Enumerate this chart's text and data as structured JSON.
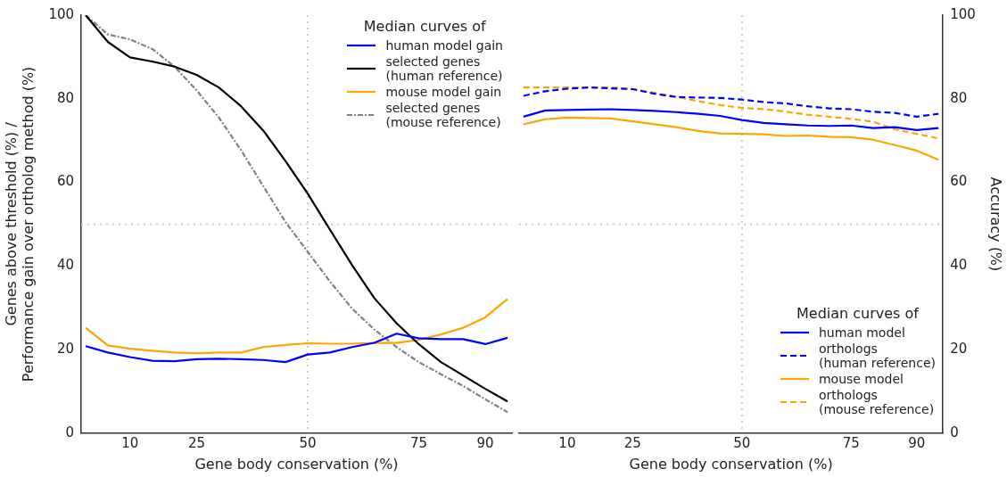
{
  "chart_data": [
    {
      "type": "line",
      "xlabel": "Gene body conservation (%)",
      "ylabel": "Genes above threshold (%) /\nPerformance gain over ortholog method (%)",
      "legend_title": "Median curves of",
      "legend": "top right",
      "x": [
        0,
        5,
        10,
        15,
        20,
        25,
        30,
        35,
        40,
        45,
        50,
        55,
        60,
        65,
        70,
        75,
        80,
        85,
        90,
        95
      ],
      "xlim": [
        -1,
        96
      ],
      "xticks": [
        10,
        25,
        50,
        75,
        90
      ],
      "ylim": [
        0,
        100
      ],
      "yticks": [
        0,
        20,
        40,
        60,
        80,
        100
      ],
      "ref_lines": [
        {
          "axis": "x",
          "value": 50,
          "color": "#cccccc",
          "line_style": "dotted"
        },
        {
          "axis": "y",
          "value": 50,
          "color": "#cccccc",
          "line_style": "dotted"
        }
      ],
      "series": [
        {
          "name": "human model gain",
          "color": "#0000ff",
          "line_style": "solid",
          "values": [
            20.8,
            19.3,
            18.2,
            17.3,
            17.2,
            17.7,
            17.8,
            17.7,
            17.5,
            17.0,
            18.8,
            19.3,
            20.6,
            21.6,
            23.8,
            22.7,
            22.5,
            22.5,
            21.3,
            22.8
          ]
        },
        {
          "name": "selected genes\n(human reference)",
          "color": "#000000",
          "line_style": "solid",
          "values": [
            100,
            93.6,
            89.9,
            88.9,
            87.7,
            85.7,
            82.7,
            78.2,
            72.4,
            65.1,
            57.3,
            48.7,
            40.2,
            32.3,
            26.3,
            21.3,
            17.0,
            13.8,
            10.6,
            7.6
          ]
        },
        {
          "name": "mouse model gain",
          "color": "#ffa500",
          "line_style": "solid",
          "values": [
            25.2,
            21.0,
            20.2,
            19.7,
            19.3,
            19.1,
            19.3,
            19.3,
            20.6,
            21.1,
            21.5,
            21.4,
            21.4,
            21.6,
            21.6,
            22.3,
            23.6,
            25.2,
            27.7,
            32.1
          ]
        },
        {
          "name": "selected genes\n(mouse reference)",
          "color": "#808080",
          "line_style": "dashdot",
          "values": [
            100,
            95.4,
            94.2,
            91.9,
            87.7,
            82.0,
            75.5,
            67.7,
            59.1,
            50.5,
            43.4,
            36.3,
            29.8,
            24.8,
            20.6,
            17.0,
            14.1,
            11.3,
            8.1,
            5.0
          ]
        }
      ]
    },
    {
      "type": "line",
      "xlabel": "Gene body conservation (%)",
      "y2label": "Accuracy (%)",
      "legend_title": "Median curves of",
      "legend": "bottom right",
      "x": [
        0,
        5,
        10,
        15,
        20,
        25,
        30,
        35,
        40,
        45,
        50,
        55,
        60,
        65,
        70,
        75,
        80,
        85,
        90,
        95
      ],
      "xlim": [
        -1,
        96
      ],
      "xticks": [
        10,
        25,
        50,
        75,
        90
      ],
      "y2lim": [
        0,
        100
      ],
      "y2ticks": [
        0,
        20,
        40,
        60,
        80,
        100
      ],
      "ref_lines": [
        {
          "axis": "x",
          "value": 50,
          "color": "#cccccc",
          "line_style": "dotted"
        },
        {
          "axis": "y2",
          "value": 50,
          "color": "#cccccc",
          "line_style": "dotted"
        }
      ],
      "series": [
        {
          "name": "human model",
          "color": "#0000ff",
          "line_style": "solid",
          "axis": "y2",
          "values": [
            75.7,
            77.2,
            77.3,
            77.4,
            77.5,
            77.3,
            77.1,
            76.8,
            76.4,
            75.9,
            74.9,
            74.2,
            73.9,
            73.6,
            73.5,
            73.6,
            73.0,
            73.2,
            72.5,
            73.0
          ]
        },
        {
          "name": "orthologs\n(human reference)",
          "color": "#0000ff",
          "line_style": "dashed",
          "axis": "y2",
          "values": [
            80.7,
            81.8,
            82.4,
            82.7,
            82.5,
            82.3,
            81.2,
            80.4,
            80.3,
            80.2,
            79.8,
            79.2,
            78.9,
            78.2,
            77.7,
            77.5,
            76.9,
            76.6,
            75.7,
            76.4
          ]
        },
        {
          "name": "mouse model",
          "color": "#ffa500",
          "line_style": "solid",
          "axis": "y2",
          "values": [
            73.9,
            75.1,
            75.5,
            75.4,
            75.3,
            74.6,
            73.9,
            73.2,
            72.3,
            71.7,
            71.6,
            71.5,
            71.1,
            71.2,
            70.9,
            70.8,
            70.2,
            68.9,
            67.6,
            65.4
          ]
        },
        {
          "name": "orthologs\n(mouse reference)",
          "color": "#ffa500",
          "line_style": "dashed",
          "axis": "y2",
          "values": [
            82.7,
            82.7,
            82.7,
            82.7,
            82.7,
            82.3,
            81.4,
            80.5,
            79.4,
            78.5,
            77.8,
            77.5,
            76.9,
            76.2,
            75.7,
            75.2,
            74.5,
            72.7,
            71.6,
            70.5
          ]
        }
      ]
    }
  ]
}
